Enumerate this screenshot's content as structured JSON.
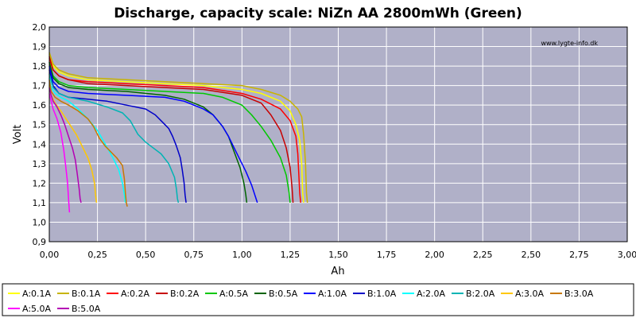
{
  "chart_data": {
    "type": "line",
    "title": "Discharge, capacity scale: NiZn AA 2800mWh (Green)",
    "xlabel": "Ah",
    "ylabel": "Volt",
    "xlim": [
      0,
      3.0
    ],
    "ylim": [
      0.9,
      2.0
    ],
    "xticks": [
      "0,00",
      "0,25",
      "0,50",
      "0,75",
      "1,00",
      "1,25",
      "1,50",
      "1,75",
      "2,00",
      "2,25",
      "2,50",
      "2,75",
      "3,00"
    ],
    "yticks": [
      "0,9",
      "1,0",
      "1,1",
      "1,2",
      "1,3",
      "1,4",
      "1,5",
      "1,6",
      "1,7",
      "1,8",
      "1,9",
      "2,0"
    ],
    "grid": true,
    "watermark": "www.lygte-info.dk",
    "legend_position": "bottom",
    "series": [
      {
        "name": "A:0.1A",
        "color": "#ffff00",
        "points": [
          [
            0,
            1.86
          ],
          [
            0.02,
            1.8
          ],
          [
            0.05,
            1.77
          ],
          [
            0.1,
            1.75
          ],
          [
            0.2,
            1.73
          ],
          [
            0.4,
            1.72
          ],
          [
            0.6,
            1.71
          ],
          [
            0.8,
            1.7
          ],
          [
            1.0,
            1.68
          ],
          [
            1.1,
            1.66
          ],
          [
            1.2,
            1.62
          ],
          [
            1.25,
            1.57
          ],
          [
            1.28,
            1.5
          ],
          [
            1.3,
            1.42
          ],
          [
            1.31,
            1.3
          ],
          [
            1.315,
            1.15
          ],
          [
            1.32,
            1.1
          ]
        ]
      },
      {
        "name": "B:0.1A",
        "color": "#c8b400",
        "points": [
          [
            0,
            1.87
          ],
          [
            0.02,
            1.81
          ],
          [
            0.05,
            1.78
          ],
          [
            0.1,
            1.76
          ],
          [
            0.2,
            1.74
          ],
          [
            0.4,
            1.73
          ],
          [
            0.6,
            1.72
          ],
          [
            0.8,
            1.71
          ],
          [
            1.0,
            1.7
          ],
          [
            1.1,
            1.68
          ],
          [
            1.2,
            1.65
          ],
          [
            1.25,
            1.62
          ],
          [
            1.29,
            1.58
          ],
          [
            1.31,
            1.54
          ],
          [
            1.32,
            1.45
          ],
          [
            1.33,
            1.3
          ],
          [
            1.335,
            1.15
          ],
          [
            1.34,
            1.1
          ]
        ]
      },
      {
        "name": "A:0.2A",
        "color": "#ff0000",
        "points": [
          [
            0,
            1.84
          ],
          [
            0.02,
            1.78
          ],
          [
            0.05,
            1.75
          ],
          [
            0.1,
            1.73
          ],
          [
            0.2,
            1.72
          ],
          [
            0.4,
            1.71
          ],
          [
            0.6,
            1.7
          ],
          [
            0.8,
            1.69
          ],
          [
            1.0,
            1.66
          ],
          [
            1.1,
            1.63
          ],
          [
            1.2,
            1.58
          ],
          [
            1.25,
            1.52
          ],
          [
            1.28,
            1.44
          ],
          [
            1.29,
            1.35
          ],
          [
            1.295,
            1.25
          ],
          [
            1.3,
            1.15
          ],
          [
            1.305,
            1.1
          ]
        ]
      },
      {
        "name": "B:0.2A",
        "color": "#c80000",
        "points": [
          [
            0,
            1.85
          ],
          [
            0.02,
            1.78
          ],
          [
            0.05,
            1.75
          ],
          [
            0.1,
            1.73
          ],
          [
            0.2,
            1.71
          ],
          [
            0.4,
            1.7
          ],
          [
            0.6,
            1.69
          ],
          [
            0.8,
            1.68
          ],
          [
            1.0,
            1.65
          ],
          [
            1.1,
            1.61
          ],
          [
            1.15,
            1.55
          ],
          [
            1.2,
            1.47
          ],
          [
            1.23,
            1.38
          ],
          [
            1.25,
            1.28
          ],
          [
            1.26,
            1.18
          ],
          [
            1.265,
            1.1
          ]
        ]
      },
      {
        "name": "A:0.5A",
        "color": "#00c800",
        "points": [
          [
            0,
            1.82
          ],
          [
            0.02,
            1.75
          ],
          [
            0.05,
            1.72
          ],
          [
            0.1,
            1.7
          ],
          [
            0.2,
            1.69
          ],
          [
            0.4,
            1.68
          ],
          [
            0.6,
            1.67
          ],
          [
            0.8,
            1.66
          ],
          [
            0.9,
            1.64
          ],
          [
            1.0,
            1.6
          ],
          [
            1.05,
            1.55
          ],
          [
            1.1,
            1.49
          ],
          [
            1.15,
            1.42
          ],
          [
            1.2,
            1.33
          ],
          [
            1.23,
            1.24
          ],
          [
            1.245,
            1.15
          ],
          [
            1.25,
            1.1
          ]
        ]
      },
      {
        "name": "B:0.5A",
        "color": "#006400",
        "points": [
          [
            0,
            1.82
          ],
          [
            0.02,
            1.74
          ],
          [
            0.05,
            1.71
          ],
          [
            0.1,
            1.69
          ],
          [
            0.2,
            1.68
          ],
          [
            0.4,
            1.67
          ],
          [
            0.6,
            1.65
          ],
          [
            0.7,
            1.63
          ],
          [
            0.8,
            1.59
          ],
          [
            0.85,
            1.55
          ],
          [
            0.9,
            1.49
          ],
          [
            0.93,
            1.44
          ],
          [
            0.96,
            1.36
          ],
          [
            0.99,
            1.28
          ],
          [
            1.01,
            1.2
          ],
          [
            1.02,
            1.14
          ],
          [
            1.025,
            1.1
          ]
        ]
      },
      {
        "name": "A:1.0A",
        "color": "#0000ff",
        "points": [
          [
            0,
            1.8
          ],
          [
            0.02,
            1.72
          ],
          [
            0.05,
            1.69
          ],
          [
            0.1,
            1.67
          ],
          [
            0.2,
            1.66
          ],
          [
            0.4,
            1.65
          ],
          [
            0.6,
            1.64
          ],
          [
            0.7,
            1.62
          ],
          [
            0.8,
            1.58
          ],
          [
            0.85,
            1.55
          ],
          [
            0.9,
            1.49
          ],
          [
            0.93,
            1.44
          ],
          [
            0.96,
            1.38
          ],
          [
            0.99,
            1.32
          ],
          [
            1.02,
            1.26
          ],
          [
            1.05,
            1.19
          ],
          [
            1.07,
            1.13
          ],
          [
            1.08,
            1.1
          ]
        ]
      },
      {
        "name": "B:1.0A",
        "color": "#0000c8",
        "points": [
          [
            0,
            1.78
          ],
          [
            0.02,
            1.7
          ],
          [
            0.05,
            1.66
          ],
          [
            0.1,
            1.64
          ],
          [
            0.2,
            1.63
          ],
          [
            0.3,
            1.62
          ],
          [
            0.4,
            1.6
          ],
          [
            0.5,
            1.58
          ],
          [
            0.55,
            1.55
          ],
          [
            0.58,
            1.52
          ],
          [
            0.6,
            1.5
          ],
          [
            0.62,
            1.48
          ],
          [
            0.64,
            1.44
          ],
          [
            0.66,
            1.39
          ],
          [
            0.68,
            1.33
          ],
          [
            0.69,
            1.27
          ],
          [
            0.7,
            1.2
          ],
          [
            0.705,
            1.14
          ],
          [
            0.71,
            1.1
          ]
        ]
      },
      {
        "name": "A:2.0A",
        "color": "#00ffff",
        "points": [
          [
            0,
            1.74
          ],
          [
            0.01,
            1.69
          ],
          [
            0.03,
            1.66
          ],
          [
            0.06,
            1.64
          ],
          [
            0.1,
            1.62
          ],
          [
            0.15,
            1.58
          ],
          [
            0.2,
            1.53
          ],
          [
            0.25,
            1.47
          ],
          [
            0.29,
            1.4
          ],
          [
            0.33,
            1.33
          ],
          [
            0.36,
            1.27
          ],
          [
            0.38,
            1.2
          ],
          [
            0.39,
            1.14
          ],
          [
            0.395,
            1.1
          ]
        ]
      },
      {
        "name": "B:2.0A",
        "color": "#00b4b4",
        "points": [
          [
            0,
            1.76
          ],
          [
            0.02,
            1.69
          ],
          [
            0.05,
            1.66
          ],
          [
            0.1,
            1.64
          ],
          [
            0.2,
            1.62
          ],
          [
            0.3,
            1.59
          ],
          [
            0.38,
            1.56
          ],
          [
            0.42,
            1.52
          ],
          [
            0.46,
            1.45
          ],
          [
            0.5,
            1.41
          ],
          [
            0.54,
            1.38
          ],
          [
            0.58,
            1.35
          ],
          [
            0.62,
            1.3
          ],
          [
            0.65,
            1.23
          ],
          [
            0.66,
            1.17
          ],
          [
            0.665,
            1.12
          ],
          [
            0.67,
            1.1
          ]
        ]
      },
      {
        "name": "A:3.0A",
        "color": "#ffc800",
        "points": [
          [
            0,
            1.7
          ],
          [
            0.01,
            1.65
          ],
          [
            0.03,
            1.61
          ],
          [
            0.06,
            1.57
          ],
          [
            0.1,
            1.51
          ],
          [
            0.14,
            1.45
          ],
          [
            0.17,
            1.39
          ],
          [
            0.2,
            1.33
          ],
          [
            0.22,
            1.27
          ],
          [
            0.235,
            1.2
          ],
          [
            0.24,
            1.14
          ],
          [
            0.245,
            1.1
          ]
        ]
      },
      {
        "name": "B:3.0A",
        "color": "#c87800",
        "points": [
          [
            0,
            1.73
          ],
          [
            0.01,
            1.67
          ],
          [
            0.03,
            1.64
          ],
          [
            0.06,
            1.62
          ],
          [
            0.1,
            1.6
          ],
          [
            0.15,
            1.57
          ],
          [
            0.2,
            1.53
          ],
          [
            0.23,
            1.49
          ],
          [
            0.26,
            1.43
          ],
          [
            0.29,
            1.39
          ],
          [
            0.32,
            1.36
          ],
          [
            0.35,
            1.33
          ],
          [
            0.38,
            1.29
          ],
          [
            0.39,
            1.22
          ],
          [
            0.395,
            1.15
          ],
          [
            0.4,
            1.1
          ],
          [
            0.405,
            1.08
          ]
        ]
      },
      {
        "name": "A:5.0A",
        "color": "#ff00ff",
        "points": [
          [
            0,
            1.66
          ],
          [
            0.01,
            1.62
          ],
          [
            0.02,
            1.58
          ],
          [
            0.04,
            1.53
          ],
          [
            0.06,
            1.46
          ],
          [
            0.075,
            1.37
          ],
          [
            0.085,
            1.29
          ],
          [
            0.095,
            1.2
          ],
          [
            0.1,
            1.12
          ],
          [
            0.105,
            1.05
          ]
        ]
      },
      {
        "name": "B:5.0A",
        "color": "#b400b4",
        "points": [
          [
            0,
            1.69
          ],
          [
            0.01,
            1.65
          ],
          [
            0.02,
            1.62
          ],
          [
            0.04,
            1.59
          ],
          [
            0.06,
            1.55
          ],
          [
            0.08,
            1.5
          ],
          [
            0.1,
            1.44
          ],
          [
            0.12,
            1.38
          ],
          [
            0.135,
            1.32
          ],
          [
            0.145,
            1.25
          ],
          [
            0.155,
            1.17
          ],
          [
            0.16,
            1.12
          ],
          [
            0.165,
            1.1
          ]
        ]
      }
    ]
  }
}
